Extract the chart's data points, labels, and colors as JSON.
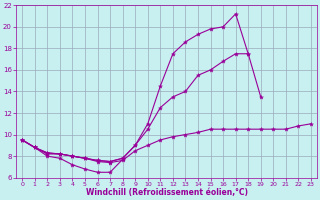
{
  "xlabel": "Windchill (Refroidissement éolien,°C)",
  "bg_color": "#c8f0f0",
  "line_color": "#990099",
  "grid_color": "#99aabb",
  "xlim": [
    -0.5,
    23.5
  ],
  "ylim": [
    6,
    22
  ],
  "xticks": [
    0,
    1,
    2,
    3,
    4,
    5,
    6,
    7,
    8,
    9,
    10,
    11,
    12,
    13,
    14,
    15,
    16,
    17,
    18,
    19,
    20,
    21,
    22,
    23
  ],
  "yticks": [
    6,
    8,
    10,
    12,
    14,
    16,
    18,
    20,
    22
  ],
  "series": [
    {
      "x": [
        0,
        1,
        2,
        3,
        4,
        5,
        6,
        7,
        8,
        9,
        10,
        11,
        12,
        13,
        14,
        15,
        16,
        17,
        18,
        19,
        20,
        21,
        22,
        23
      ],
      "y": [
        9.5,
        8.8,
        8.0,
        7.8,
        7.2,
        6.8,
        6.5,
        6.5,
        7.7,
        null,
        null,
        null,
        null,
        null,
        null,
        null,
        null,
        null,
        null,
        null,
        null,
        null,
        null,
        null
      ]
    },
    {
      "x": [
        0,
        1,
        2,
        3,
        4,
        5,
        6,
        7,
        8,
        9,
        10,
        11,
        12,
        13,
        14,
        15,
        16,
        17,
        18,
        19,
        20,
        21,
        22,
        23
      ],
      "y": [
        9.5,
        8.8,
        8.2,
        8.2,
        8.0,
        7.8,
        7.5,
        7.4,
        7.6,
        8.5,
        9.0,
        9.5,
        9.8,
        10.0,
        10.2,
        10.5,
        10.5,
        10.5,
        10.5,
        10.5,
        10.5,
        10.5,
        10.8,
        11.0
      ]
    },
    {
      "x": [
        0,
        1,
        2,
        3,
        4,
        5,
        6,
        7,
        8,
        9,
        10,
        11,
        12,
        13,
        14,
        15,
        16,
        17,
        18,
        19,
        20,
        21,
        22,
        23
      ],
      "y": [
        9.5,
        8.8,
        8.3,
        8.2,
        8.0,
        7.8,
        7.6,
        7.5,
        7.8,
        9.0,
        11.0,
        14.5,
        17.5,
        18.6,
        19.3,
        19.8,
        20.0,
        21.2,
        17.5,
        null,
        null,
        null,
        null,
        null
      ]
    },
    {
      "x": [
        0,
        1,
        2,
        3,
        4,
        5,
        6,
        7,
        8,
        9,
        10,
        11,
        12,
        13,
        14,
        15,
        16,
        17,
        18,
        19,
        20,
        21,
        22,
        23
      ],
      "y": [
        9.5,
        8.8,
        8.3,
        8.2,
        8.0,
        7.8,
        7.6,
        7.5,
        7.8,
        9.0,
        10.5,
        12.5,
        13.5,
        14.0,
        15.5,
        16.0,
        16.8,
        17.5,
        17.5,
        13.5,
        null,
        null,
        null,
        null
      ]
    }
  ]
}
